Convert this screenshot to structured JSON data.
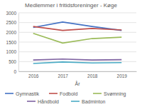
{
  "chart_data": {
    "type": "line",
    "title": "Medlemmer i fritidsforeninger - Køge",
    "x_label": "År",
    "categories": [
      "2016",
      "2017",
      "2018",
      "2019"
    ],
    "series": [
      {
        "name": "Gymnastik",
        "color": "#4472c4",
        "values": [
          2250,
          2530,
          2300,
          2100
        ]
      },
      {
        "name": "Fodbold",
        "color": "#c0504d",
        "values": [
          2300,
          2100,
          2200,
          2120
        ]
      },
      {
        "name": "Svømning",
        "color": "#9bbb59",
        "values": [
          1950,
          1450,
          1680,
          1750
        ]
      },
      {
        "name": "Håndbold",
        "color": "#8064a2",
        "values": [
          580,
          630,
          580,
          600
        ]
      },
      {
        "name": "Badminton",
        "color": "#4bacc6",
        "values": [
          400,
          480,
          430,
          450
        ]
      }
    ],
    "ylim": [
      0,
      3000
    ],
    "yticks": [
      0,
      500,
      1000,
      1500,
      2000,
      2500,
      3000
    ],
    "grid": true,
    "legend": "bottom"
  }
}
